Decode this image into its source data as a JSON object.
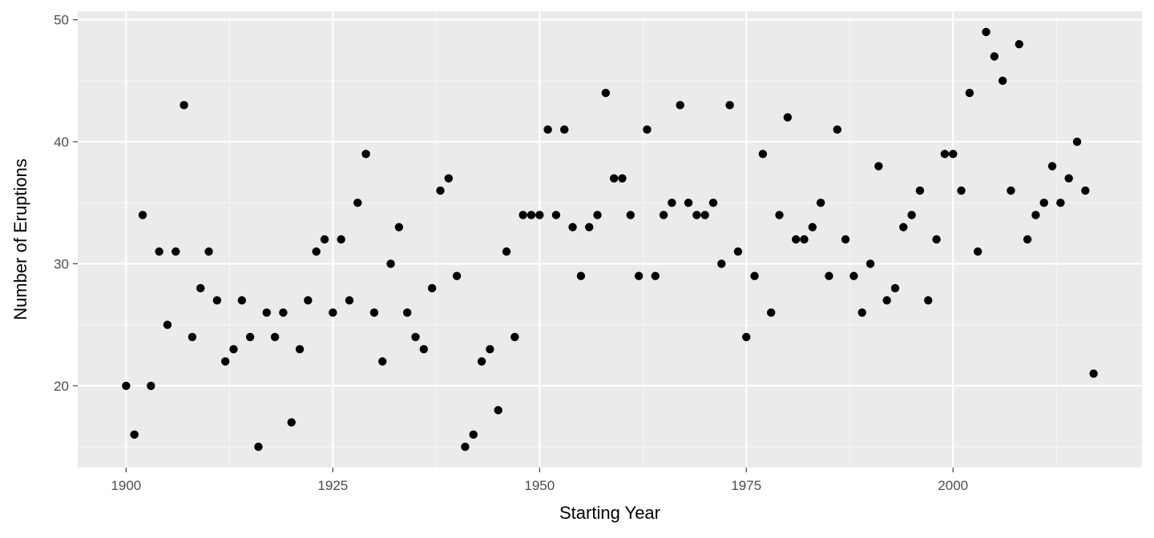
{
  "chart_data": {
    "type": "scatter",
    "title": "",
    "xlabel": "Starting Year",
    "ylabel": "Number of Eruptions",
    "xlim": [
      1894.15,
      2022.85
    ],
    "ylim": [
      13.3,
      50.7
    ],
    "x_ticks": [
      1900,
      1925,
      1950,
      1975,
      2000
    ],
    "x_tick_labels": [
      "1900",
      "1925",
      "1950",
      "1975",
      "2000"
    ],
    "y_ticks": [
      20,
      30,
      40,
      50
    ],
    "y_tick_labels": [
      "20",
      "30",
      "40",
      "50"
    ],
    "grid": true,
    "legend": "none",
    "colors": {
      "panel": "#ebebeb",
      "grid_major": "#ffffff",
      "grid_minor": "#f5f5f5",
      "point": "#000000",
      "tick": "#333333"
    },
    "x": [
      1900,
      1901,
      1902,
      1903,
      1904,
      1905,
      1906,
      1907,
      1908,
      1909,
      1910,
      1911,
      1912,
      1913,
      1914,
      1915,
      1916,
      1917,
      1918,
      1919,
      1920,
      1921,
      1922,
      1923,
      1924,
      1925,
      1926,
      1927,
      1928,
      1929,
      1930,
      1931,
      1932,
      1933,
      1934,
      1935,
      1936,
      1937,
      1938,
      1939,
      1940,
      1941,
      1942,
      1943,
      1944,
      1945,
      1946,
      1947,
      1948,
      1949,
      1950,
      1951,
      1952,
      1953,
      1954,
      1955,
      1956,
      1957,
      1958,
      1959,
      1960,
      1961,
      1962,
      1963,
      1964,
      1965,
      1966,
      1967,
      1968,
      1969,
      1970,
      1971,
      1972,
      1973,
      1974,
      1975,
      1976,
      1977,
      1978,
      1979,
      1980,
      1981,
      1982,
      1983,
      1984,
      1985,
      1986,
      1987,
      1988,
      1989,
      1990,
      1991,
      1992,
      1993,
      1994,
      1995,
      1996,
      1997,
      1998,
      1999,
      2000,
      2001,
      2002,
      2003,
      2004,
      2005,
      2006,
      2007,
      2008,
      2009,
      2010,
      2011,
      2012,
      2013,
      2014,
      2015,
      2016,
      2017
    ],
    "y": [
      20,
      16,
      34,
      20,
      31,
      25,
      31,
      43,
      24,
      28,
      31,
      27,
      22,
      23,
      27,
      24,
      15,
      26,
      24,
      26,
      17,
      23,
      27,
      31,
      32,
      26,
      32,
      27,
      35,
      39,
      26,
      22,
      30,
      33,
      26,
      24,
      23,
      28,
      36,
      37,
      29,
      15,
      16,
      22,
      23,
      18,
      31,
      24,
      34,
      34,
      34,
      41,
      34,
      41,
      33,
      29,
      33,
      34,
      44,
      37,
      37,
      34,
      29,
      41,
      29,
      34,
      35,
      43,
      35,
      34,
      34,
      35,
      30,
      43,
      31,
      24,
      29,
      39,
      26,
      34,
      42,
      32,
      32,
      33,
      35,
      29,
      41,
      32,
      29,
      26,
      30,
      38,
      27,
      28,
      33,
      34,
      36,
      27,
      32,
      39,
      39,
      36,
      44,
      31,
      49,
      47,
      45,
      36,
      48,
      32,
      34,
      35,
      38,
      35,
      37,
      40,
      36,
      21
    ]
  }
}
